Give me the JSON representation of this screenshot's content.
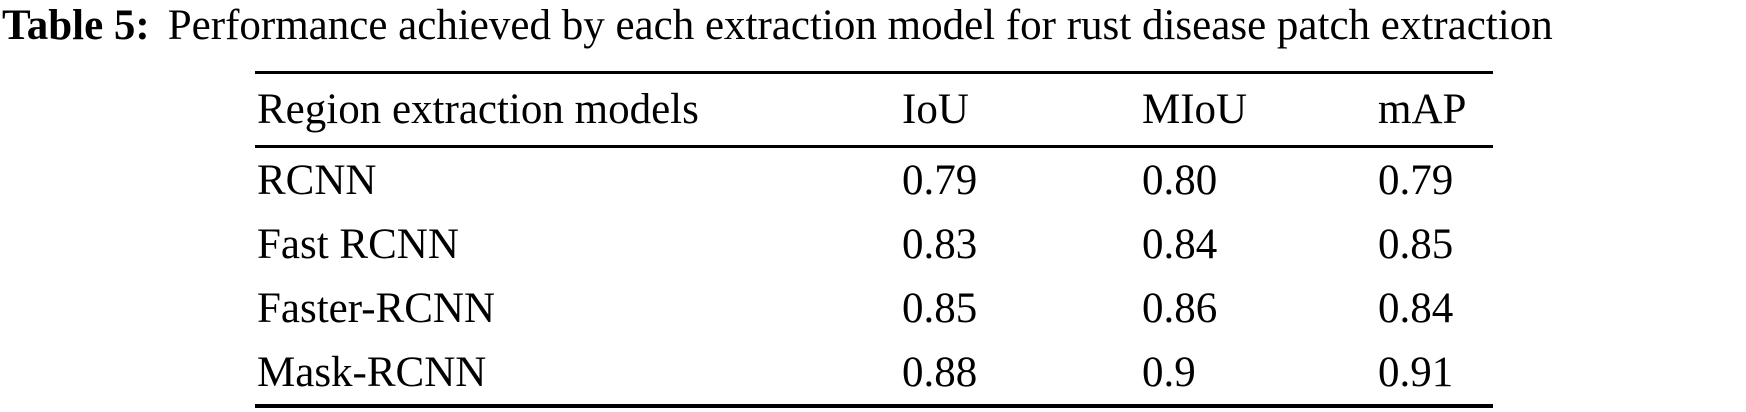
{
  "page": {
    "background_color": "#ffffff",
    "text_color": "#000000"
  },
  "caption": {
    "label": "Table 5:",
    "text": "Performance achieved by each extraction model for rust disease patch extraction"
  },
  "table": {
    "headers": [
      "Region extraction models",
      "IoU",
      "MIoU",
      "mAP"
    ],
    "rows": [
      [
        "RCNN",
        "0.79",
        "0.80",
        "0.79"
      ],
      [
        "Fast RCNN",
        "0.83",
        "0.84",
        "0.85"
      ],
      [
        "Faster-RCNN",
        "0.85",
        "0.86",
        "0.84"
      ],
      [
        "Mask-RCNN",
        "0.88",
        "0.9",
        "0.91"
      ]
    ]
  },
  "chart_data": {
    "type": "table",
    "title": "Table 5: Performance achieved by each extraction model for rust disease patch extraction",
    "columns": [
      "Region extraction models",
      "IoU",
      "MIoU",
      "mAP"
    ],
    "rows": [
      {
        "model": "RCNN",
        "IoU": 0.79,
        "MIoU": 0.8,
        "mAP": 0.79
      },
      {
        "model": "Fast RCNN",
        "IoU": 0.83,
        "MIoU": 0.84,
        "mAP": 0.85
      },
      {
        "model": "Faster-RCNN",
        "IoU": 0.85,
        "MIoU": 0.86,
        "mAP": 0.84
      },
      {
        "model": "Mask-RCNN",
        "IoU": 0.88,
        "MIoU": 0.9,
        "mAP": 0.91
      }
    ]
  }
}
